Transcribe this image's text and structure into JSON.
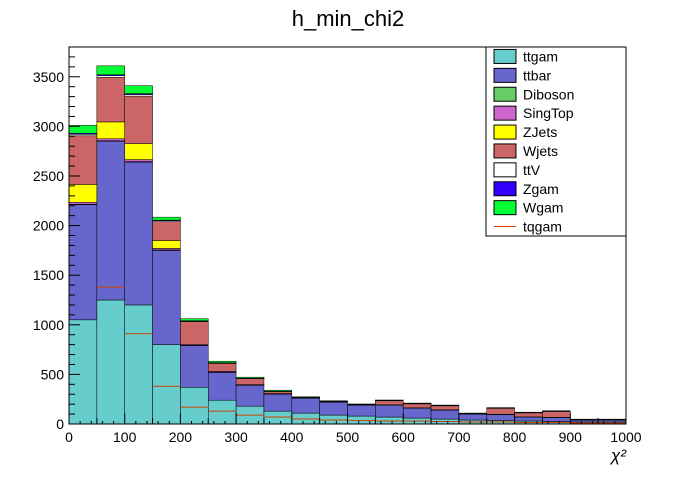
{
  "chart_data": {
    "type": "bar",
    "stacked": true,
    "title": "h_min_chi2",
    "xlabel": "χ²",
    "ylabel": "",
    "xlim": [
      0,
      1000
    ],
    "ylim": [
      0,
      3800
    ],
    "x_bin_edges": [
      0,
      50,
      100,
      150,
      200,
      250,
      300,
      350,
      400,
      450,
      500,
      550,
      600,
      650,
      700,
      750,
      800,
      850,
      900,
      950,
      1000
    ],
    "x_ticks": [
      0,
      100,
      200,
      300,
      400,
      500,
      600,
      700,
      800,
      900,
      1000
    ],
    "y_ticks": [
      0,
      500,
      1000,
      1500,
      2000,
      2500,
      3000,
      3500
    ],
    "legend_position": "top-right",
    "series": [
      {
        "name": "ttgam",
        "color": "#66cccc",
        "values": [
          1050,
          1250,
          1200,
          800,
          370,
          240,
          180,
          130,
          110,
          90,
          80,
          70,
          60,
          50,
          40,
          35,
          30,
          25,
          20,
          20
        ]
      },
      {
        "name": "ttbar",
        "color": "#6666cc",
        "values": [
          1160,
          1600,
          1440,
          950,
          420,
          280,
          210,
          170,
          150,
          130,
          110,
          120,
          100,
          90,
          60,
          60,
          40,
          40,
          20,
          20
        ]
      },
      {
        "name": "Diboson",
        "color": "#66cc66",
        "values": [
          5,
          5,
          5,
          5,
          3,
          3,
          2,
          2,
          2,
          2,
          1,
          1,
          1,
          1,
          1,
          1,
          1,
          1,
          1,
          1
        ]
      },
      {
        "name": "SingTop",
        "color": "#cc66cc",
        "values": [
          20,
          20,
          20,
          15,
          10,
          8,
          5,
          5,
          4,
          4,
          3,
          3,
          2,
          2,
          2,
          2,
          1,
          1,
          1,
          1
        ]
      },
      {
        "name": "ZJets",
        "color": "#ffff00",
        "values": [
          180,
          170,
          160,
          80,
          0,
          0,
          0,
          0,
          0,
          0,
          0,
          0,
          0,
          0,
          0,
          0,
          0,
          0,
          0,
          0
        ]
      },
      {
        "name": "Wjets",
        "color": "#cc6666",
        "values": [
          490,
          450,
          480,
          190,
          230,
          80,
          60,
          20,
          0,
          0,
          0,
          40,
          40,
          40,
          0,
          60,
          40,
          60,
          0,
          0
        ]
      },
      {
        "name": "ttV",
        "color": "#ffffff",
        "values": [
          15,
          15,
          15,
          10,
          5,
          5,
          3,
          3,
          2,
          2,
          2,
          2,
          2,
          2,
          1,
          1,
          1,
          1,
          1,
          1
        ]
      },
      {
        "name": "Zgam",
        "color": "#3300ff",
        "values": [
          10,
          10,
          10,
          5,
          3,
          2,
          2,
          1,
          1,
          1,
          1,
          1,
          1,
          1,
          1,
          1,
          1,
          1,
          1,
          1
        ]
      },
      {
        "name": "Wgam",
        "color": "#00ff33",
        "values": [
          80,
          90,
          80,
          30,
          20,
          15,
          10,
          10,
          5,
          5,
          5,
          5,
          5,
          5,
          5,
          5,
          5,
          5,
          5,
          5
        ]
      }
    ],
    "overlay": {
      "name": "tqgam",
      "color": "#cc4400",
      "values": [
        null,
        1380,
        910,
        380,
        170,
        130,
        90,
        70,
        50,
        40,
        35,
        30,
        30,
        25,
        20,
        20,
        15,
        15,
        10,
        10
      ]
    }
  }
}
